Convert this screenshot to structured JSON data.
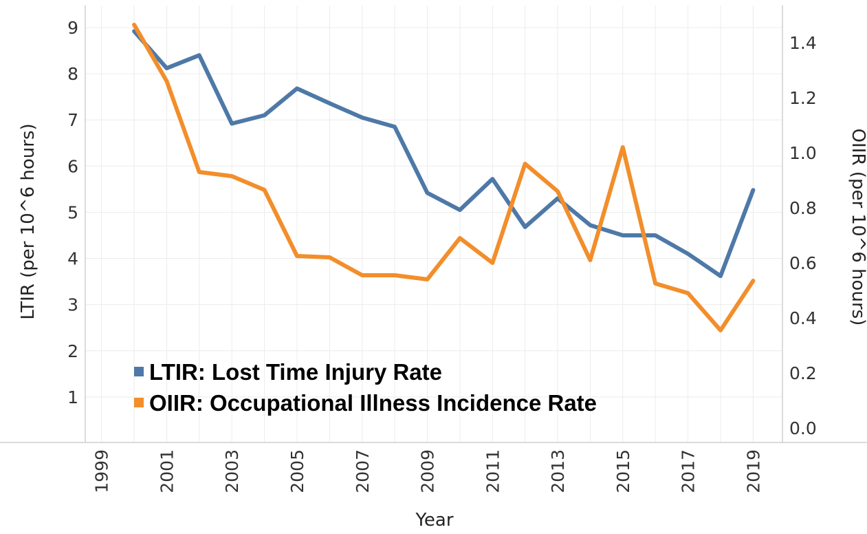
{
  "chart_data": {
    "type": "line",
    "xlabel": "Year",
    "ylabel_left": "LTIR (per 10^6 hours)",
    "ylabel_right": "OIIR (per 10^6 hours)",
    "x": [
      2000,
      2001,
      2002,
      2003,
      2004,
      2005,
      2006,
      2007,
      2008,
      2009,
      2010,
      2011,
      2012,
      2013,
      2014,
      2015,
      2016,
      2017,
      2018,
      2019
    ],
    "xlim": [
      1998.5,
      2019.9
    ],
    "x_tick_labels": [
      "1999",
      "2001",
      "2003",
      "2005",
      "2007",
      "2009",
      "2011",
      "2013",
      "2015",
      "2017",
      "2019"
    ],
    "y_left_ticks": [
      "1",
      "2",
      "3",
      "4",
      "5",
      "6",
      "7",
      "8",
      "9"
    ],
    "y_right_ticks": [
      "0.0",
      "0.2",
      "0.4",
      "0.6",
      "0.8",
      "1.0",
      "1.2",
      "1.4"
    ],
    "ylim_left": [
      0,
      9
    ],
    "ylim_right": [
      0,
      1.48
    ],
    "grid": true,
    "legend_position": "bottom-left",
    "series": [
      {
        "name": "LTIR: Lost Time Injury Rate",
        "axis": "left",
        "color": "#4e79a7",
        "values": [
          8.92,
          8.12,
          8.4,
          6.92,
          7.1,
          7.68,
          7.36,
          7.05,
          6.85,
          5.42,
          5.05,
          5.72,
          4.68,
          5.3,
          4.72,
          4.5,
          4.5,
          4.1,
          3.62,
          5.48
        ]
      },
      {
        "name": "OIIR: Occupational Illness Incidence Rate",
        "axis": "right",
        "color": "#f28e2b",
        "values": [
          1.465,
          1.26,
          0.93,
          0.915,
          0.865,
          0.625,
          0.62,
          0.555,
          0.555,
          0.54,
          0.69,
          0.6,
          0.96,
          0.86,
          0.61,
          1.02,
          0.525,
          0.49,
          0.355,
          0.535
        ]
      }
    ]
  }
}
